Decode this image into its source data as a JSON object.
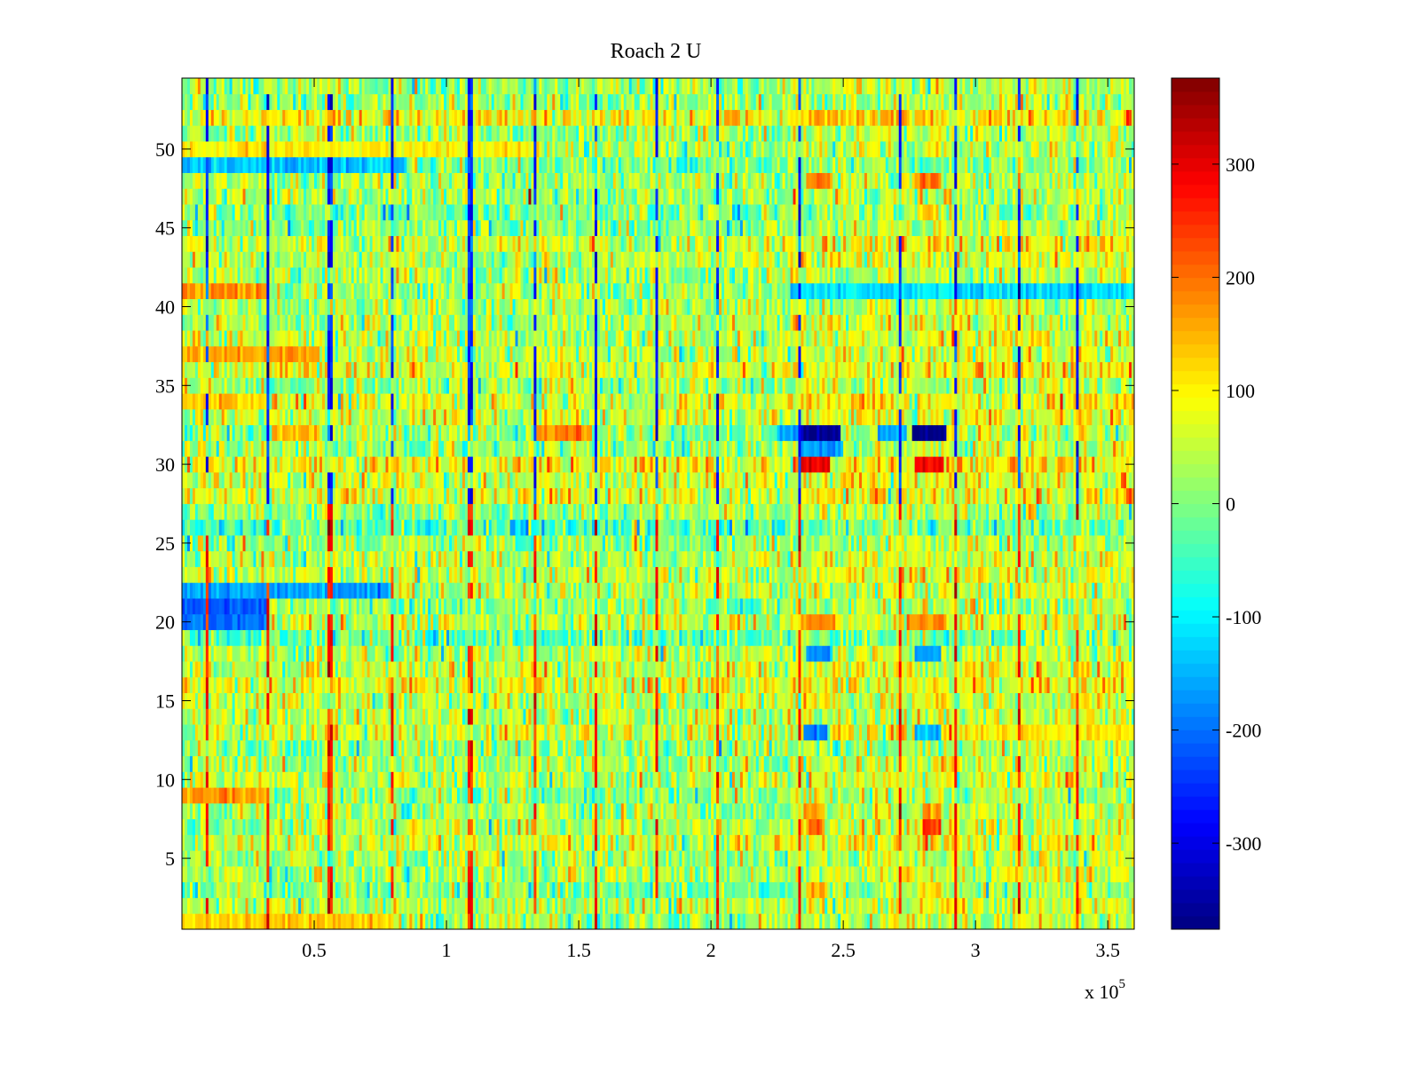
{
  "chart_data": {
    "type": "heatmap",
    "title": "Roach 2 U",
    "xlabel": "",
    "ylabel": "",
    "x_exponent_label": {
      "base": "x 10",
      "exp": "5"
    },
    "xlim": [
      0,
      360000
    ],
    "ylim": [
      0.5,
      54.5
    ],
    "rows": 54,
    "columns": 360,
    "colormap": "jet",
    "clim": [
      -376,
      376
    ],
    "xticks": [
      {
        "value": 50000,
        "label": "0.5"
      },
      {
        "value": 100000,
        "label": "1"
      },
      {
        "value": 150000,
        "label": "1.5"
      },
      {
        "value": 200000,
        "label": "2"
      },
      {
        "value": 250000,
        "label": "2.5"
      },
      {
        "value": 300000,
        "label": "3"
      },
      {
        "value": 350000,
        "label": "3.5"
      }
    ],
    "yticks": [
      {
        "value": 5,
        "label": "5"
      },
      {
        "value": 10,
        "label": "10"
      },
      {
        "value": 15,
        "label": "15"
      },
      {
        "value": 20,
        "label": "20"
      },
      {
        "value": 25,
        "label": "25"
      },
      {
        "value": 30,
        "label": "30"
      },
      {
        "value": 35,
        "label": "35"
      },
      {
        "value": 40,
        "label": "40"
      },
      {
        "value": 45,
        "label": "45"
      },
      {
        "value": 50,
        "label": "50"
      }
    ],
    "colorbar_ticks": [
      {
        "value": 300,
        "label": "300"
      },
      {
        "value": 200,
        "label": "200"
      },
      {
        "value": 100,
        "label": "100"
      },
      {
        "value": 0,
        "label": "0"
      },
      {
        "value": -100,
        "label": "-100"
      },
      {
        "value": -200,
        "label": "-200"
      },
      {
        "value": -300,
        "label": "-300"
      }
    ],
    "base_level": 20,
    "noise_sd": 60,
    "vertical_stripes_x": [
      9400,
      32900,
      56000,
      79500,
      109000,
      133900,
      156700,
      179900,
      202700,
      233200,
      271800,
      292300,
      316800,
      338900
    ],
    "stripe_value_upper_rows": -260,
    "stripe_value_lower_rows": 260,
    "blocks": [
      {
        "row": 32,
        "x": [
          234000,
          249300
        ],
        "value": -370
      },
      {
        "row": 32,
        "x": [
          276500,
          289000
        ],
        "value": -370
      },
      {
        "row": 32,
        "x": [
          225000,
          234000
        ],
        "value": -160
      },
      {
        "row": 32,
        "x": [
          263000,
          274000
        ],
        "value": -160
      },
      {
        "row": 31,
        "x": [
          234000,
          250000
        ],
        "value": -170
      },
      {
        "row": 30,
        "x": [
          234500,
          244500
        ],
        "value": 310
      },
      {
        "row": 30,
        "x": [
          277000,
          288000
        ],
        "value": 280
      },
      {
        "row": 48,
        "x": [
          236000,
          246000
        ],
        "value": 190
      },
      {
        "row": 48,
        "x": [
          277500,
          287000
        ],
        "value": 200
      },
      {
        "row": 46,
        "x": [
          279000,
          286000
        ],
        "value": 150
      },
      {
        "row": 20,
        "x": [
          236000,
          247000
        ],
        "value": 180
      },
      {
        "row": 20,
        "x": [
          277000,
          289000
        ],
        "value": 180
      },
      {
        "row": 18,
        "x": [
          236000,
          246000
        ],
        "value": -160
      },
      {
        "row": 18,
        "x": [
          277500,
          287000
        ],
        "value": -160
      },
      {
        "row": 13,
        "x": [
          235000,
          244000
        ],
        "value": -190
      },
      {
        "row": 13,
        "x": [
          277000,
          287000
        ],
        "value": -140
      },
      {
        "row": 7,
        "x": [
          236000,
          243000
        ],
        "value": 190
      },
      {
        "row": 7,
        "x": [
          280000,
          287000
        ],
        "value": 250
      },
      {
        "row": 8,
        "x": [
          236000,
          243000
        ],
        "value": 160
      },
      {
        "row": 8,
        "x": [
          280000,
          287000
        ],
        "value": 170
      },
      {
        "row": 32,
        "x": [
          134000,
          155000
        ],
        "value": 190
      },
      {
        "row": 32,
        "x": [
          34000,
          52000
        ],
        "value": 150
      },
      {
        "row": 41,
        "x": [
          0,
          33000
        ],
        "value": 180
      },
      {
        "row": 37,
        "x": [
          0,
          52000
        ],
        "value": 160
      },
      {
        "row": 34,
        "x": [
          0,
          32000
        ],
        "value": 130
      },
      {
        "row": 22,
        "x": [
          0,
          80000
        ],
        "value": -160
      },
      {
        "row": 21,
        "x": [
          0,
          32000
        ],
        "value": -220
      },
      {
        "row": 20,
        "x": [
          0,
          32000
        ],
        "value": -200
      },
      {
        "row": 49,
        "x": [
          0,
          85000
        ],
        "value": -140
      },
      {
        "row": 41,
        "x": [
          230000,
          360000
        ],
        "value": -120
      },
      {
        "row": 9,
        "x": [
          0,
          32000
        ],
        "value": 170
      },
      {
        "row": 1,
        "x": [
          0,
          80000
        ],
        "value": 130
      },
      {
        "row": 50,
        "x": [
          0,
          135000
        ],
        "value": 100
      },
      {
        "row": 13,
        "x": [
          300000,
          360000
        ],
        "value": 110
      },
      {
        "row": 3,
        "x": [
          236000,
          243000
        ],
        "value": 150
      },
      {
        "row": 3,
        "x": [
          278000,
          288000
        ],
        "value": 120
      }
    ]
  }
}
